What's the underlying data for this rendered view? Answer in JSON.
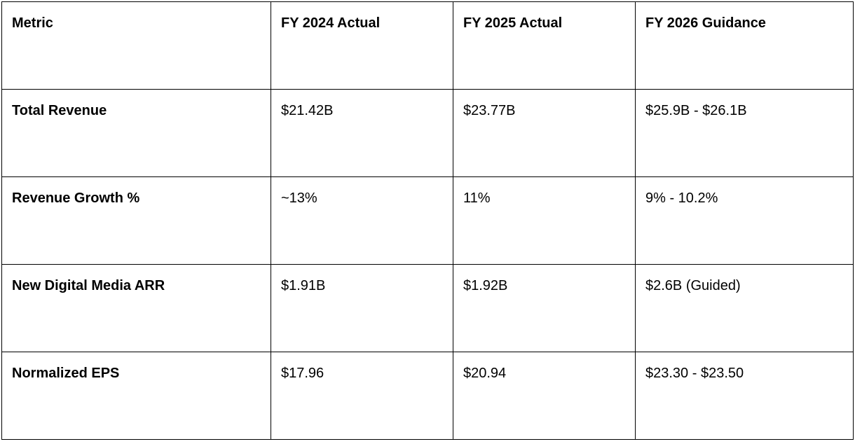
{
  "table": {
    "header": [
      "Metric",
      "FY 2024 Actual",
      "FY 2025 Actual",
      "FY 2026 Guidance"
    ],
    "rows": [
      [
        "Total Revenue",
        "$21.42B",
        "$23.77B",
        "$25.9B - $26.1B"
      ],
      [
        "Revenue Growth %",
        "~13%",
        "11%",
        "9% - 10.2%"
      ],
      [
        "New Digital Media ARR",
        "$1.91B",
        "$1.92B",
        "$2.6B (Guided)"
      ],
      [
        "Normalized EPS",
        "$17.96",
        "$20.94",
        "$23.30 - $23.50"
      ]
    ]
  }
}
